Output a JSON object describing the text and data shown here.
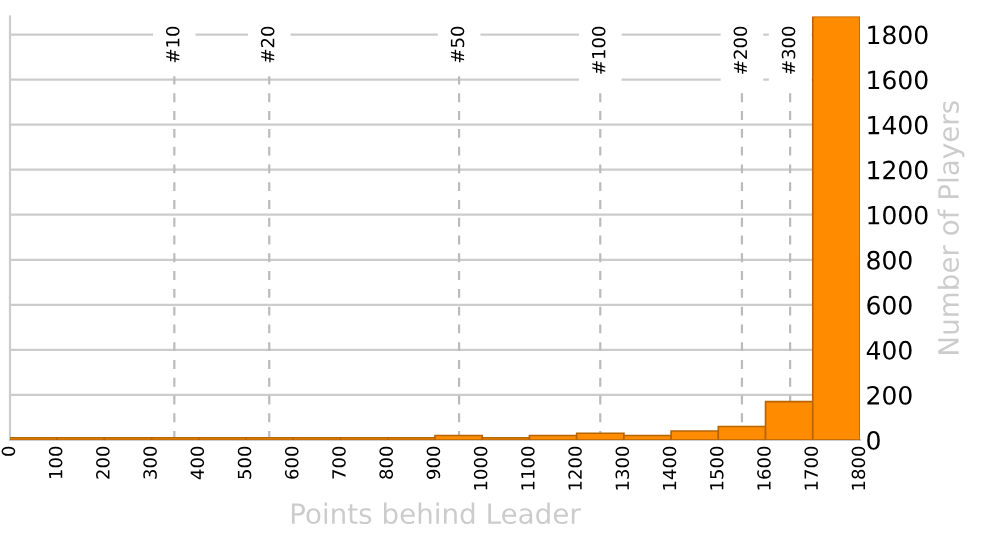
{
  "chart_data": {
    "type": "histogram",
    "xlabel": "Points behind Leader",
    "ylabel": "Number of Players",
    "bins": [
      0,
      100,
      200,
      300,
      400,
      500,
      600,
      700,
      800,
      900,
      1000,
      1100,
      1200,
      1300,
      1400,
      1500,
      1600,
      1700,
      1800
    ],
    "values": [
      10,
      10,
      10,
      10,
      10,
      10,
      10,
      10,
      10,
      20,
      10,
      20,
      30,
      20,
      40,
      60,
      170,
      1880
    ],
    "color": "#ff8c00",
    "xlim": [
      0,
      1800
    ],
    "xticks": [
      0,
      100,
      200,
      300,
      400,
      500,
      600,
      700,
      800,
      900,
      1000,
      1100,
      1200,
      1300,
      1400,
      1500,
      1600,
      1700,
      1800
    ],
    "ylim": [
      0,
      1880
    ],
    "yticks": [
      0,
      200,
      400,
      600,
      800,
      1000,
      1200,
      1400,
      1600,
      1800
    ],
    "grid": "y",
    "ref_lines": [
      {
        "axis": "x",
        "value": 348,
        "color": "#bbbbbb",
        "line_style": "dashed"
      },
      {
        "axis": "x",
        "value": 549,
        "color": "#bbbbbb",
        "line_style": "dashed"
      },
      {
        "axis": "x",
        "value": 951,
        "color": "#bbbbbb",
        "line_style": "dashed"
      },
      {
        "axis": "x",
        "value": 1250,
        "color": "#bbbbbb",
        "line_style": "dashed"
      },
      {
        "axis": "x",
        "value": 1550,
        "color": "#bbbbbb",
        "line_style": "dashed"
      },
      {
        "axis": "x",
        "value": 1652,
        "color": "#bbbbbb",
        "line_style": "dashed"
      }
    ],
    "annotations": [
      {
        "text": "#10",
        "x": 348,
        "y": 1840
      },
      {
        "text": "#20",
        "x": 549,
        "y": 1840
      },
      {
        "text": "#50",
        "x": 951,
        "y": 1840
      },
      {
        "text": "#100",
        "x": 1250,
        "y": 1840
      },
      {
        "text": "#200",
        "x": 1550,
        "y": 1840
      },
      {
        "text": "#300",
        "x": 1652,
        "y": 1840
      }
    ]
  }
}
